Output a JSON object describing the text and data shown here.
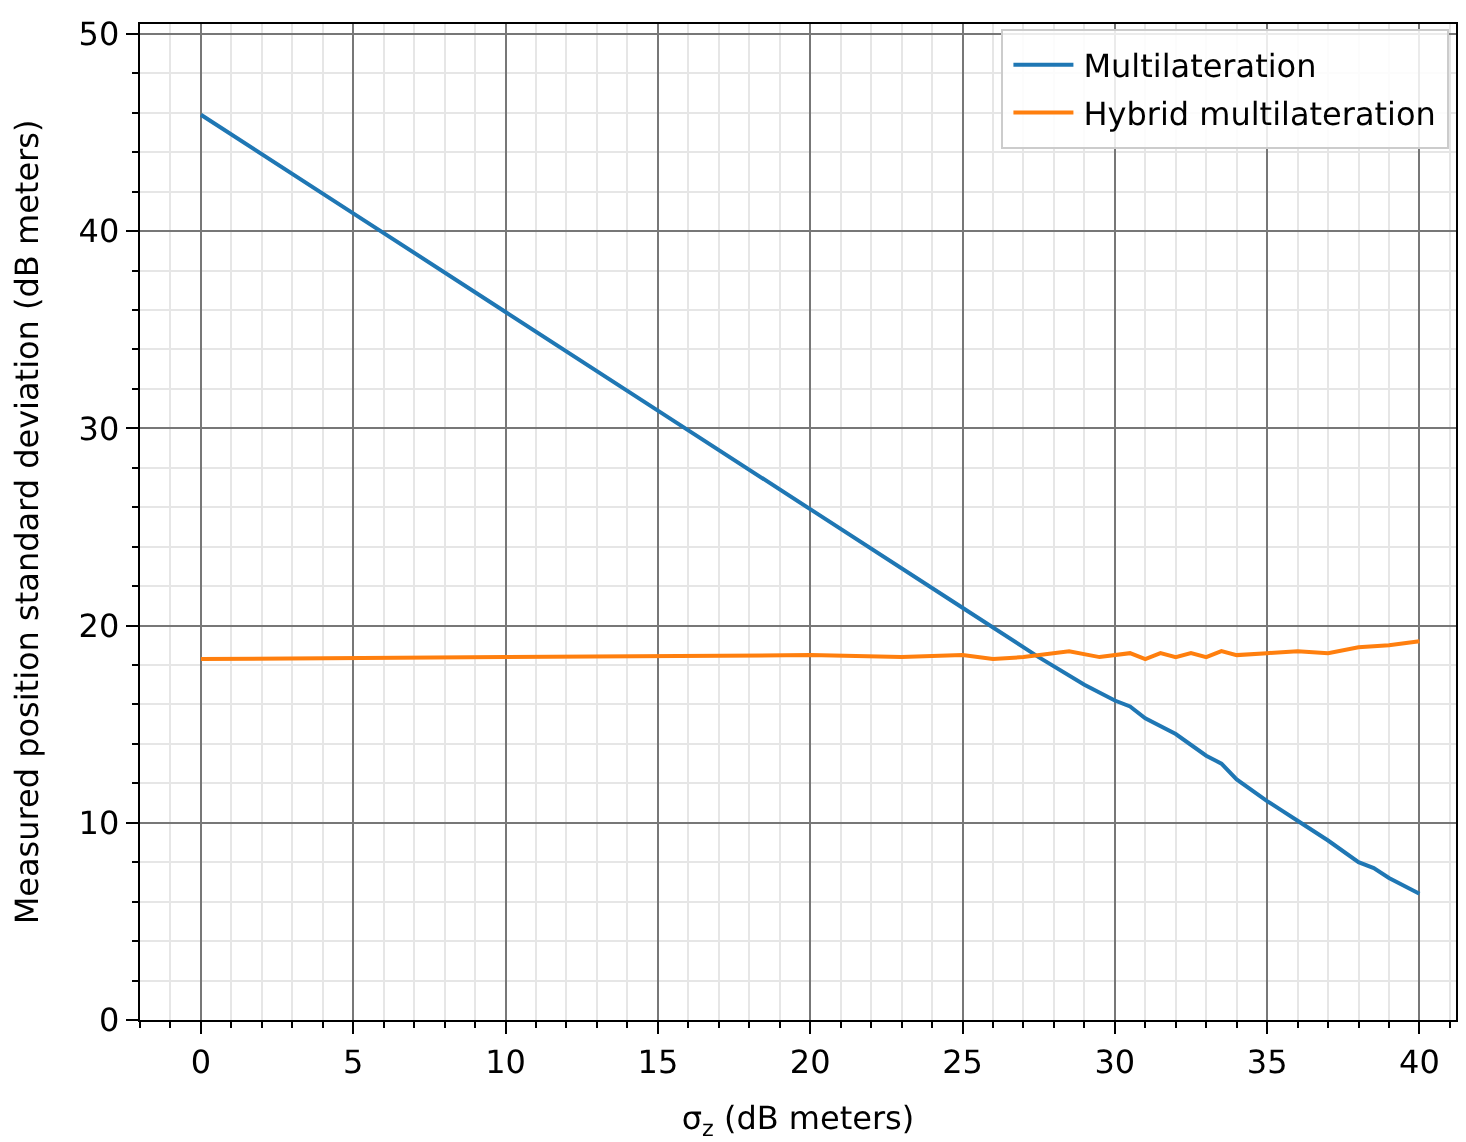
{
  "chart_data": {
    "type": "line",
    "xlabel": "σ$_{z}$ (dB meters)",
    "ylabel": "Measured position standard deviation (dB meters)",
    "series": [
      {
        "name": "Multilateration",
        "color": "#1f77b4",
        "x": [
          0,
          5,
          10,
          15,
          20,
          25,
          27.5,
          29,
          30,
          30.5,
          31,
          32,
          33,
          33.5,
          34,
          35,
          35.5,
          36,
          37,
          38,
          38.5,
          39,
          40
        ],
        "values": [
          45.9,
          40.9,
          35.9,
          30.9,
          25.9,
          20.9,
          18.4,
          17.0,
          16.2,
          15.9,
          15.3,
          14.5,
          13.4,
          13.0,
          12.2,
          11.1,
          10.6,
          10.1,
          9.1,
          8.0,
          7.7,
          7.2,
          6.4
        ]
      },
      {
        "name": "Hybrid multilateration",
        "color": "#ff7f0e",
        "x": [
          0,
          10,
          20,
          23,
          25,
          26,
          27,
          28.5,
          29.5,
          30.5,
          31,
          31.5,
          32,
          32.5,
          33,
          33.5,
          34,
          35,
          36,
          37,
          38,
          39,
          40
        ],
        "values": [
          18.3,
          18.4,
          18.5,
          18.4,
          18.5,
          18.3,
          18.4,
          18.7,
          18.4,
          18.6,
          18.3,
          18.6,
          18.4,
          18.6,
          18.4,
          18.7,
          18.5,
          18.6,
          18.7,
          18.6,
          18.9,
          19.0,
          19.2
        ]
      }
    ],
    "xlim": [
      -2,
      41.2
    ],
    "ylim": [
      0,
      50.5
    ],
    "xticks": [
      0,
      5,
      10,
      15,
      20,
      25,
      30,
      35,
      40
    ],
    "yticks": [
      0,
      10,
      20,
      30,
      40,
      50
    ],
    "grid": true,
    "legend": "top right",
    "marker": "none",
    "line_style": "solid"
  }
}
